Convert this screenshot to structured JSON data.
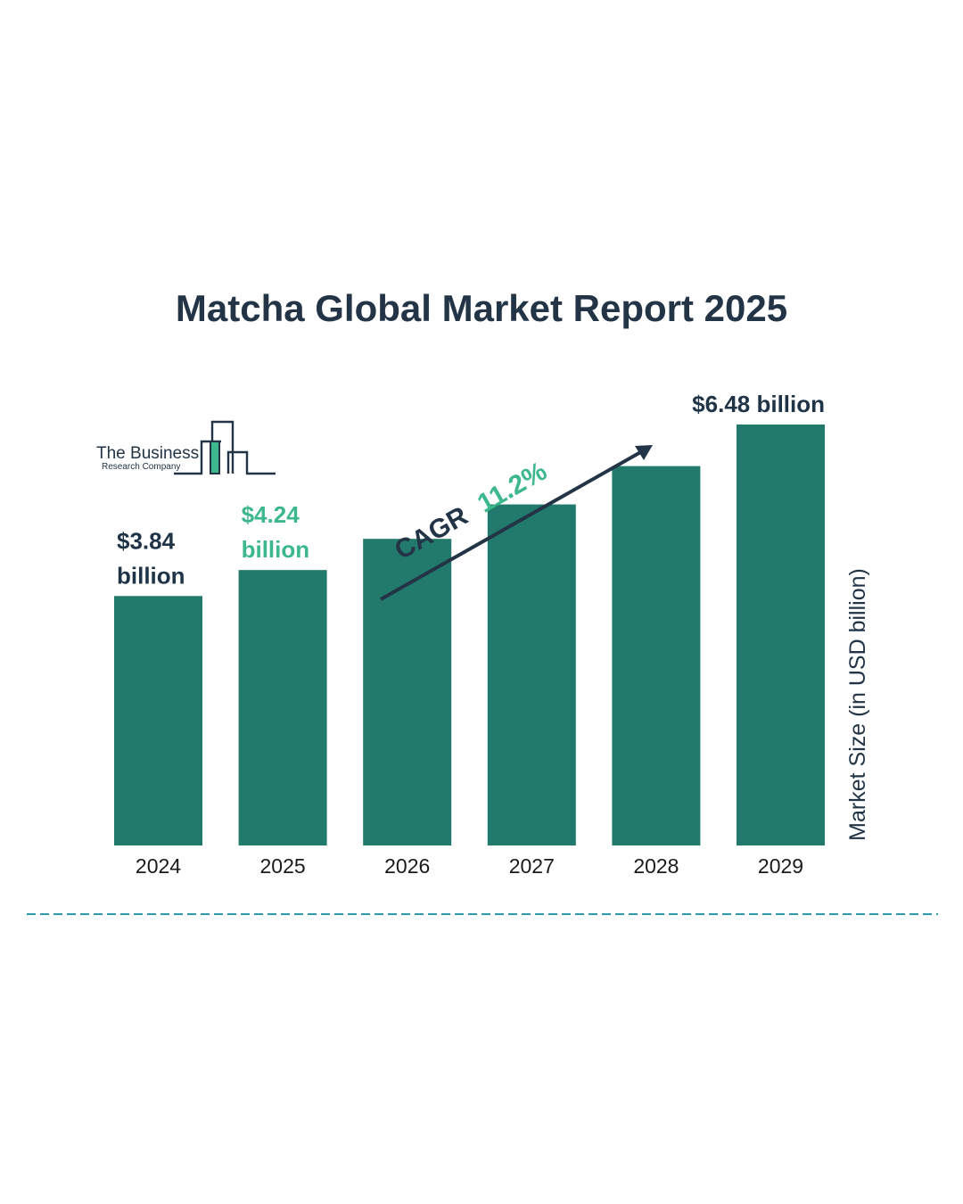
{
  "chart_data": {
    "type": "bar",
    "title": "Matcha Global Market Report 2025",
    "categories": [
      "2024",
      "2025",
      "2026",
      "2027",
      "2028",
      "2029"
    ],
    "values": [
      3.84,
      4.24,
      4.72,
      5.25,
      5.84,
      6.48
    ],
    "data_labels": [
      {
        "index": 0,
        "lines": [
          "$3.84",
          "billion"
        ],
        "color": "#1f3447"
      },
      {
        "index": 1,
        "lines": [
          "$4.24",
          "billion"
        ],
        "color": "#3cb88c"
      },
      {
        "index": 5,
        "lines": [
          "$6.48 billion"
        ],
        "color": "#1f3447"
      }
    ],
    "ylabel": "Market Size (in USD billion)",
    "ylim": [
      0,
      6.48
    ],
    "grid": false,
    "cagr": {
      "prefix": "CAGR",
      "value": "11.2%"
    }
  },
  "logo": {
    "line1": "The Business",
    "line2": "Research Company"
  },
  "colors": {
    "bar": "#217a6b",
    "title": "#223445",
    "accent": "#3cb88c",
    "dashed_rule": "#2f9aa6"
  }
}
